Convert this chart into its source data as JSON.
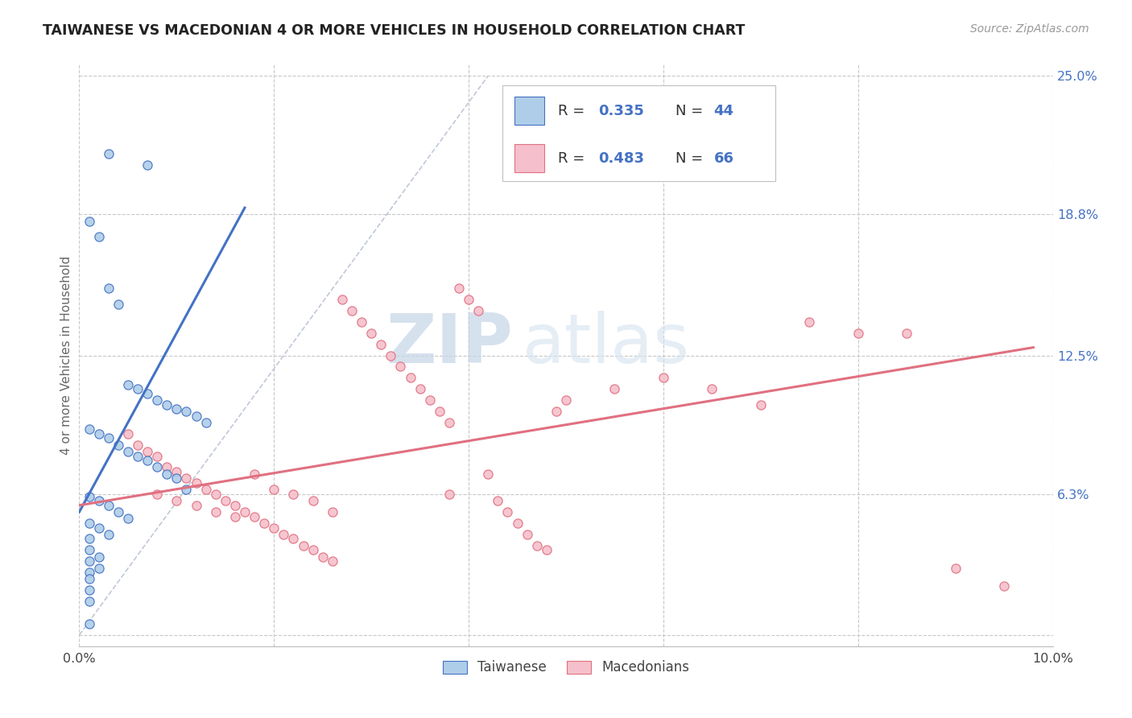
{
  "title": "TAIWANESE VS MACEDONIAN 4 OR MORE VEHICLES IN HOUSEHOLD CORRELATION CHART",
  "source": "Source: ZipAtlas.com",
  "ylabel": "4 or more Vehicles in Household",
  "xlim": [
    0.0,
    0.1
  ],
  "ylim": [
    -0.005,
    0.255
  ],
  "yticks": [
    0.0,
    0.063,
    0.125,
    0.188,
    0.25
  ],
  "yticklabels_right": [
    "",
    "6.3%",
    "12.5%",
    "18.8%",
    "25.0%"
  ],
  "xtick_positions": [
    0.0,
    0.02,
    0.04,
    0.06,
    0.08,
    0.1
  ],
  "xticklabels": [
    "0.0%",
    "",
    "",
    "",
    "",
    "10.0%"
  ],
  "watermark_zip": "ZIP",
  "watermark_atlas": "atlas",
  "taiwanese_fill": "#aecde8",
  "taiwanese_edge": "#4472c4",
  "macedonian_fill": "#f5c0cb",
  "macedonian_edge": "#e07080",
  "tw_line_color": "#4472c4",
  "mac_line_color": "#e07080",
  "diag_color": "#c0c8d8",
  "legend_r_color": "#4472c4",
  "legend_n_color": "#4472c4",
  "right_tick_color": "#4472c4",
  "tw_r": "0.335",
  "tw_n": "44",
  "mac_r": "0.483",
  "mac_n": "66",
  "tw_x": [
    0.003,
    0.007,
    0.001,
    0.002,
    0.003,
    0.004,
    0.005,
    0.006,
    0.007,
    0.008,
    0.009,
    0.01,
    0.011,
    0.012,
    0.013,
    0.001,
    0.002,
    0.003,
    0.004,
    0.005,
    0.006,
    0.007,
    0.008,
    0.009,
    0.01,
    0.011,
    0.001,
    0.002,
    0.003,
    0.004,
    0.005,
    0.001,
    0.002,
    0.003,
    0.001,
    0.001,
    0.002,
    0.001,
    0.002,
    0.001,
    0.001,
    0.001,
    0.001,
    0.001
  ],
  "tw_y": [
    0.215,
    0.21,
    0.185,
    0.178,
    0.155,
    0.148,
    0.112,
    0.11,
    0.108,
    0.105,
    0.103,
    0.101,
    0.1,
    0.098,
    0.095,
    0.092,
    0.09,
    0.088,
    0.085,
    0.082,
    0.08,
    0.078,
    0.075,
    0.072,
    0.07,
    0.065,
    0.062,
    0.06,
    0.058,
    0.055,
    0.052,
    0.05,
    0.048,
    0.045,
    0.043,
    0.038,
    0.035,
    0.033,
    0.03,
    0.028,
    0.025,
    0.02,
    0.015,
    0.005
  ],
  "tw_slope": 8.0,
  "tw_intercept": 0.055,
  "tw_line_x": [
    0.0,
    0.017
  ],
  "mac_x": [
    0.005,
    0.006,
    0.007,
    0.008,
    0.009,
    0.01,
    0.011,
    0.012,
    0.013,
    0.014,
    0.015,
    0.016,
    0.017,
    0.018,
    0.019,
    0.02,
    0.021,
    0.022,
    0.023,
    0.024,
    0.025,
    0.026,
    0.027,
    0.028,
    0.029,
    0.03,
    0.031,
    0.032,
    0.033,
    0.034,
    0.035,
    0.036,
    0.037,
    0.038,
    0.039,
    0.04,
    0.041,
    0.042,
    0.043,
    0.044,
    0.045,
    0.046,
    0.047,
    0.048,
    0.049,
    0.05,
    0.055,
    0.06,
    0.065,
    0.07,
    0.075,
    0.08,
    0.008,
    0.01,
    0.012,
    0.014,
    0.016,
    0.018,
    0.02,
    0.022,
    0.024,
    0.026,
    0.085,
    0.09,
    0.095,
    0.038
  ],
  "mac_y": [
    0.09,
    0.085,
    0.082,
    0.08,
    0.075,
    0.073,
    0.07,
    0.068,
    0.065,
    0.063,
    0.06,
    0.058,
    0.055,
    0.053,
    0.05,
    0.048,
    0.045,
    0.043,
    0.04,
    0.038,
    0.035,
    0.033,
    0.15,
    0.145,
    0.14,
    0.135,
    0.13,
    0.125,
    0.12,
    0.115,
    0.11,
    0.105,
    0.1,
    0.095,
    0.155,
    0.15,
    0.145,
    0.072,
    0.06,
    0.055,
    0.05,
    0.045,
    0.04,
    0.038,
    0.1,
    0.105,
    0.11,
    0.115,
    0.11,
    0.103,
    0.14,
    0.135,
    0.063,
    0.06,
    0.058,
    0.055,
    0.053,
    0.072,
    0.065,
    0.063,
    0.06,
    0.055,
    0.135,
    0.03,
    0.022,
    0.063
  ],
  "mac_slope": 0.72,
  "mac_intercept": 0.058,
  "mac_line_x": [
    0.0,
    0.098
  ]
}
